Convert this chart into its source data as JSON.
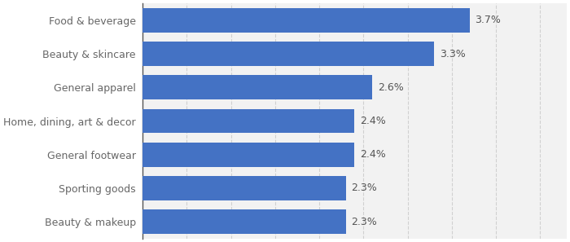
{
  "categories": [
    "Beauty & makeup",
    "Sporting goods",
    "General footwear",
    "Home, dining, art & decor",
    "General apparel",
    "Beauty & skincare",
    "Food & beverage"
  ],
  "values": [
    2.3,
    2.3,
    2.4,
    2.4,
    2.6,
    3.3,
    3.7
  ],
  "bar_color": "#4472c4",
  "background_color": "#ffffff",
  "plot_bg_color": "#f2f2f2",
  "label_color": "#666666",
  "value_color": "#555555",
  "xlim": [
    0,
    4.8
  ],
  "bar_height": 0.72,
  "label_fontsize": 9.0,
  "value_fontsize": 9.0,
  "grid_color": "#d0d0d0",
  "axis_line_color": "#555555"
}
